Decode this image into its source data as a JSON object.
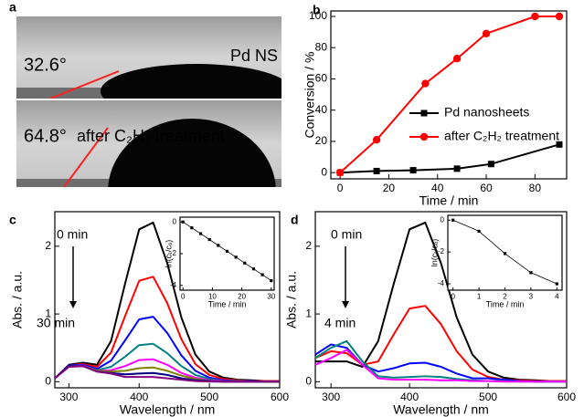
{
  "panel_a": {
    "panel": "a",
    "top": {
      "angle": "32.6°",
      "label": "Pd NS"
    },
    "bottom": {
      "angle": "64.8°",
      "label": "after C₂H₂ treatment"
    }
  },
  "chart_data": [
    {
      "type": "line",
      "panel": "b",
      "xlabel": "Time / min",
      "ylabel": "Conversion / %",
      "xlim": [
        -3.8,
        93
      ],
      "xticks": [
        0,
        20,
        40,
        60,
        80
      ],
      "ylim": [
        -4,
        103.5
      ],
      "yticks": [
        0,
        20,
        40,
        60,
        80,
        100
      ],
      "series": [
        {
          "name": "Pd nanosheets",
          "color": "#000000",
          "marker": "square",
          "x": [
            0,
            15,
            30,
            48,
            62,
            90
          ],
          "values": [
            0,
            1,
            1.5,
            2.5,
            5.5,
            18
          ]
        },
        {
          "name": "after C₂H₂ treatment",
          "color": "#ff0000",
          "marker": "circle",
          "x": [
            0,
            15,
            35,
            48,
            60,
            80,
            90
          ],
          "values": [
            0,
            21,
            57,
            73,
            89,
            100,
            100
          ]
        }
      ]
    },
    {
      "type": "line",
      "panel": "c",
      "xlabel": "Wavelength / nm",
      "ylabel": "Abs. / a.u.",
      "xlim": [
        280,
        600
      ],
      "xticks": [
        300,
        400,
        500,
        600
      ],
      "ylim": [
        -0.09,
        2.51
      ],
      "yticks": [
        0,
        1,
        2
      ],
      "annotations": [
        "0 min",
        "30 min"
      ],
      "x": [
        280,
        300,
        320,
        340,
        360,
        380,
        400,
        420,
        440,
        460,
        480,
        500,
        520,
        540,
        560,
        580,
        600
      ],
      "series": [
        {
          "color": "#000000",
          "values": [
            0.05,
            0.25,
            0.28,
            0.25,
            0.6,
            1.45,
            2.25,
            2.35,
            1.75,
            0.95,
            0.4,
            0.15,
            0.06,
            0.03,
            0.02,
            0.01,
            0.01
          ]
        },
        {
          "color": "#ff0000",
          "values": [
            0.05,
            0.24,
            0.26,
            0.22,
            0.43,
            0.97,
            1.49,
            1.55,
            1.16,
            0.63,
            0.26,
            0.1,
            0.04,
            0.02,
            0.01,
            0.01,
            0.01
          ]
        },
        {
          "color": "#0000ff",
          "values": [
            0.05,
            0.24,
            0.25,
            0.19,
            0.31,
            0.61,
            0.92,
            0.96,
            0.72,
            0.39,
            0.16,
            0.06,
            0.02,
            0.01,
            0.01,
            0,
            0
          ]
        },
        {
          "color": "#008080",
          "values": [
            0.05,
            0.23,
            0.24,
            0.17,
            0.22,
            0.37,
            0.54,
            0.56,
            0.42,
            0.23,
            0.1,
            0.04,
            0.01,
            0.01,
            0,
            0,
            0
          ]
        },
        {
          "color": "#ff00ff",
          "values": [
            0.05,
            0.23,
            0.24,
            0.16,
            0.17,
            0.23,
            0.32,
            0.33,
            0.25,
            0.13,
            0.06,
            0.02,
            0.01,
            0,
            0,
            0,
            0
          ]
        },
        {
          "color": "#808000",
          "values": [
            0.05,
            0.23,
            0.23,
            0.16,
            0.15,
            0.16,
            0.2,
            0.21,
            0.16,
            0.09,
            0.04,
            0.01,
            0,
            0,
            0,
            0,
            0
          ]
        },
        {
          "color": "#000080",
          "values": [
            0.05,
            0.23,
            0.23,
            0.15,
            0.13,
            0.11,
            0.12,
            0.13,
            0.1,
            0.05,
            0.02,
            0.01,
            0,
            0,
            0,
            0,
            0
          ]
        },
        {
          "color": "#800080",
          "values": [
            0.05,
            0.22,
            0.23,
            0.15,
            0.12,
            0.07,
            0.07,
            0.07,
            0.05,
            0.03,
            0.01,
            0,
            0,
            0,
            0,
            0,
            0
          ]
        }
      ]
    },
    {
      "type": "line",
      "xlabel": "Time / min",
      "ylabel": "ln(cₜ/cₒ)",
      "xlim": [
        -1,
        31
      ],
      "xticks": [
        0,
        10,
        20,
        30
      ],
      "ylim": [
        -4.3,
        0.3
      ],
      "yticks": [
        0,
        -2,
        -4
      ],
      "series": [
        {
          "color": "#000000",
          "marker": "square",
          "x": [
            0,
            3,
            6,
            9,
            12,
            15,
            18,
            21,
            24,
            27,
            30
          ],
          "values": [
            0,
            -0.37,
            -0.74,
            -1.11,
            -1.48,
            -1.85,
            -2.22,
            -2.59,
            -2.96,
            -3.33,
            -3.7
          ]
        }
      ]
    },
    {
      "type": "line",
      "panel": "d",
      "xlabel": "Wavelength / nm",
      "ylabel": "Abs. / a.u.",
      "xlim": [
        280,
        600
      ],
      "xticks": [
        300,
        400,
        500,
        600
      ],
      "ylim": [
        -0.09,
        2.51
      ],
      "yticks": [
        0,
        1,
        2
      ],
      "annotations": [
        "0 min",
        "4 min"
      ],
      "x": [
        280,
        300,
        320,
        340,
        360,
        380,
        400,
        420,
        440,
        460,
        480,
        500,
        520,
        540,
        560,
        580,
        600
      ],
      "series": [
        {
          "color": "#000000",
          "values": [
            0.3,
            0.3,
            0.3,
            0.22,
            0.6,
            1.45,
            2.25,
            2.35,
            1.75,
            0.95,
            0.4,
            0.15,
            0.06,
            0.03,
            0.02,
            0.01,
            0.01
          ]
        },
        {
          "color": "#ff0000",
          "values": [
            0.35,
            0.45,
            0.42,
            0.25,
            0.3,
            0.7,
            1.08,
            1.12,
            0.85,
            0.45,
            0.18,
            0.07,
            0.03,
            0.02,
            0.01,
            0.01,
            0.01
          ]
        },
        {
          "color": "#0000ff",
          "values": [
            0.4,
            0.55,
            0.5,
            0.25,
            0.15,
            0.2,
            0.27,
            0.28,
            0.22,
            0.12,
            0.05,
            0.05,
            0.03,
            0.01,
            0,
            0,
            0
          ]
        },
        {
          "color": "#008080",
          "values": [
            0.35,
            0.5,
            0.6,
            0.3,
            0.08,
            0.06,
            0.07,
            0.08,
            0.07,
            0.04,
            0.02,
            0.01,
            0.01,
            0,
            0,
            0,
            0
          ]
        },
        {
          "color": "#ff00ff",
          "values": [
            0.25,
            0.35,
            0.47,
            0.25,
            0.05,
            0.03,
            0.03,
            0.03,
            0.02,
            0.02,
            0.01,
            0.01,
            0,
            0,
            0,
            0,
            0
          ]
        }
      ]
    },
    {
      "type": "line",
      "xlabel": "Time / min",
      "ylabel": "ln(cₜ/cₒ)",
      "xlim": [
        -0.2,
        4.2
      ],
      "xticks": [
        0,
        1,
        2,
        3,
        4
      ],
      "ylim": [
        -4.4,
        0.3
      ],
      "yticks": [
        0,
        -2,
        -4
      ],
      "series": [
        {
          "color": "#000000",
          "marker": "square",
          "x": [
            0,
            1,
            2,
            3,
            4
          ],
          "values": [
            0,
            -0.7,
            -2.1,
            -3.3,
            -4.0
          ]
        }
      ]
    }
  ]
}
